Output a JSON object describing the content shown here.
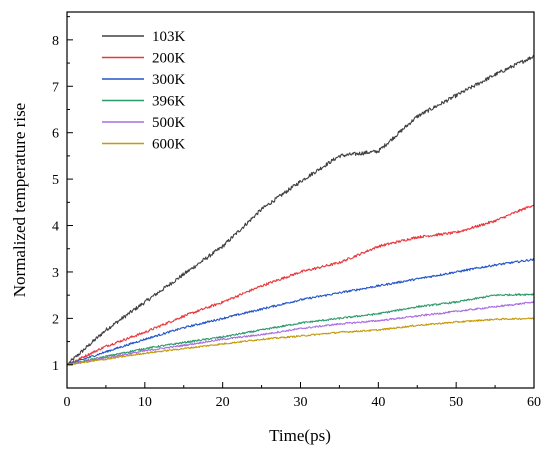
{
  "chart_data": {
    "type": "line",
    "title": "",
    "xlabel": "Time(ps)",
    "ylabel": "Normalized temperature rise",
    "xlim": [
      0,
      60
    ],
    "ylim": [
      0.5,
      8.6
    ],
    "xticks": [
      0,
      10,
      20,
      30,
      40,
      50,
      60
    ],
    "yticks": [
      1,
      2,
      3,
      4,
      5,
      6,
      7,
      8
    ],
    "grid": false,
    "legend_position": "top-left",
    "x": [
      0,
      5,
      10,
      15,
      20,
      25,
      30,
      35,
      40,
      45,
      50,
      55,
      60
    ],
    "series": [
      {
        "name": "103K",
        "color": "#404040",
        "values": [
          1.0,
          1.75,
          2.35,
          2.95,
          3.55,
          4.35,
          4.95,
          5.5,
          5.6,
          6.35,
          6.8,
          7.25,
          7.65
        ]
      },
      {
        "name": "200K",
        "color": "#e8383d",
        "values": [
          1.0,
          1.4,
          1.7,
          2.05,
          2.35,
          2.7,
          3.0,
          3.2,
          3.55,
          3.75,
          3.85,
          4.1,
          4.45
        ]
      },
      {
        "name": "300K",
        "color": "#2455c8",
        "values": [
          1.0,
          1.28,
          1.55,
          1.8,
          2.0,
          2.2,
          2.4,
          2.55,
          2.7,
          2.85,
          3.0,
          3.15,
          3.27
        ]
      },
      {
        "name": "396K",
        "color": "#2e9a6a",
        "values": [
          1.0,
          1.18,
          1.35,
          1.48,
          1.6,
          1.75,
          1.9,
          2.0,
          2.1,
          2.25,
          2.35,
          2.5,
          2.52
        ]
      },
      {
        "name": "500K",
        "color": "#a86ee0",
        "values": [
          1.0,
          1.15,
          1.3,
          1.42,
          1.55,
          1.65,
          1.78,
          1.88,
          1.95,
          2.05,
          2.15,
          2.25,
          2.35
        ]
      },
      {
        "name": "600K",
        "color": "#c49a0a",
        "values": [
          1.0,
          1.12,
          1.25,
          1.35,
          1.45,
          1.55,
          1.62,
          1.7,
          1.75,
          1.85,
          1.92,
          1.98,
          2.0
        ]
      }
    ]
  }
}
